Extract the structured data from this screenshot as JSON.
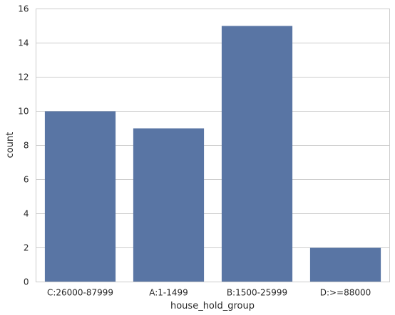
{
  "chart_data": {
    "type": "bar",
    "categories": [
      "C:26000-87999",
      "A:1-1499",
      "B:1500-25999",
      "D:>=88000"
    ],
    "values": [
      10,
      9,
      15,
      2
    ],
    "xlabel": "house_hold_group",
    "ylabel": "count",
    "ylim": [
      0,
      16
    ],
    "yticks": [
      0,
      2,
      4,
      6,
      8,
      10,
      12,
      14,
      16
    ],
    "grid": "horizontal",
    "bar_color": "#5975a4",
    "grid_color": "#cccccc"
  }
}
